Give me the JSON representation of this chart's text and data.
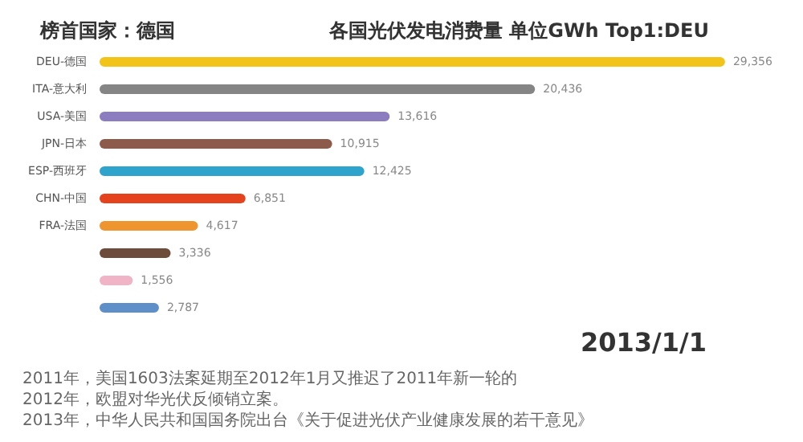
{
  "chart_data": {
    "type": "bar",
    "orientation": "horizontal",
    "title": "各国光伏发电消费量 单位GWh Top1:DEU",
    "subtitle": "榜首国家：德国",
    "categories": [
      "DEU-德国",
      "ITA-意大利",
      "USA-美国",
      "JPN-日本",
      "ESP-西班牙",
      "CHN-中国",
      "FRA-法国",
      null,
      null,
      null
    ],
    "values": [
      29356,
      20436,
      13616,
      10915,
      12425,
      6851,
      4617,
      3336,
      1556,
      2787
    ],
    "colors": [
      "#f2c318",
      "#858585",
      "#8c7cc0",
      "#8d5b4b",
      "#2ea3cc",
      "#e5431e",
      "#ee9530",
      "#6e4c3c",
      "#f1b3c6",
      "#5e8fc8"
    ],
    "value_labels": [
      "29,356",
      "20,436",
      "13,616",
      "10,915",
      "12,425",
      "6,851",
      "4,617",
      "3,336",
      "1,556",
      "2,787"
    ],
    "annotations": [
      "2013/1/1",
      "2011年，美国1603法案延期至2012年1月又推迟了2011年新一轮的",
      "2012年，欧盟对华光伏反倾销立案。",
      "2013年，中华人民共和国国务院出台《关于促进光伏产业健康发展的若干意见》"
    ]
  }
}
